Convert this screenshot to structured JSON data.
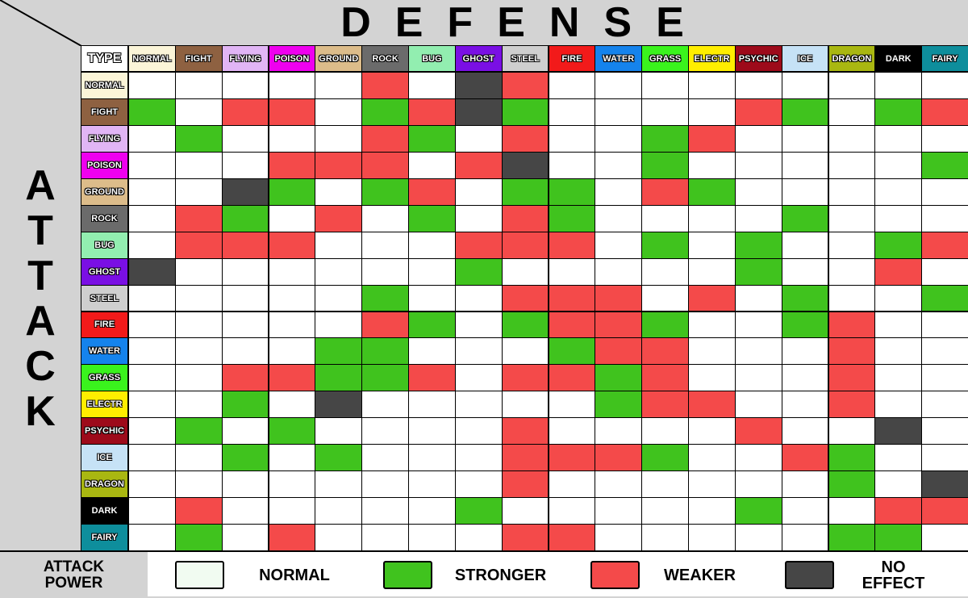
{
  "titles": {
    "defense": "DEFENSE",
    "attack": "ATTACK",
    "corner": "TYPE"
  },
  "types": [
    {
      "label": "NORMAL",
      "color": "#fbf5d8"
    },
    {
      "label": "FIGHT",
      "color": "#8e6141"
    },
    {
      "label": "FLYING",
      "color": "#e1b5f5"
    },
    {
      "label": "POISON",
      "color": "#ef00ef"
    },
    {
      "label": "GROUND",
      "color": "#dcbc8a"
    },
    {
      "label": "ROCK",
      "color": "#6b6b6b"
    },
    {
      "label": "BUG",
      "color": "#92eeb0"
    },
    {
      "label": "GHOST",
      "color": "#7a0fe4"
    },
    {
      "label": "STEEL",
      "color": "#cfcfcf"
    },
    {
      "label": "FIRE",
      "color": "#f21a1a"
    },
    {
      "label": "WATER",
      "color": "#1583ec"
    },
    {
      "label": "GRASS",
      "color": "#3af31d"
    },
    {
      "label": "ELECTR",
      "color": "#ffee00"
    },
    {
      "label": "PSYCHIC",
      "color": "#9d0a1a"
    },
    {
      "label": "ICE",
      "color": "#c6e2f6"
    },
    {
      "label": "DRAGON",
      "color": "#a9b711"
    },
    {
      "label": "DARK",
      "color": "#000000"
    },
    {
      "label": "FAIRY",
      "color": "#0e8e9c"
    }
  ],
  "effects": {
    "N": {
      "label": "NORMAL",
      "color": "#ffffff"
    },
    "S": {
      "label": "STRONGER",
      "color": "#40c31e"
    },
    "W": {
      "label": "WEAKER",
      "color": "#f44a4a"
    },
    "X": {
      "label": "NO EFFECT",
      "color": "#464646"
    }
  },
  "matrix": [
    "NNNNNWNXWNNNNNNNNN",
    "SNWWNSWXSNNNNWSNSW",
    "NSNNNWSNWNNSWNNNNN",
    "NNNWWWNWXNNSNNNNNS",
    "NNXSNSWNSSNWSNNNNN",
    "NWSNWNSNWSNNNNSNNN",
    "NWWWNNNWWWNSNSNNSW",
    "XNNNNNNSNNNNNSNNWN",
    "NNNNNSNNWWWNWNSNNS",
    "NNNNNWSNSWWSNNSWNN",
    "NNNNSSNNNSWWNNNWNN",
    "NNWWSSWNWWSWNNNWNN",
    "NNSNXNNNNNSWWNNWNN",
    "NSNSNNNNWNNNNWNNXN",
    "NNSNSNNNWWWSNNWSNN",
    "NNNNNNNNWNNNNNNSNX",
    "NWNNNNNSNNNNNSNNWW",
    "NSNWNNNNWWNNNNNSSN"
  ],
  "legend": {
    "title_line1": "ATTACK",
    "title_line2": "POWER",
    "items": [
      {
        "key": "N",
        "label": "NORMAL",
        "swatch": "#f1fbf1"
      },
      {
        "key": "S",
        "label": "STRONGER",
        "swatch": "#40c31e"
      },
      {
        "key": "W",
        "label": "WEAKER",
        "swatch": "#f44a4a"
      },
      {
        "key": "X",
        "label_line1": "NO",
        "label_line2": "EFFECT",
        "swatch": "#464646"
      }
    ]
  }
}
